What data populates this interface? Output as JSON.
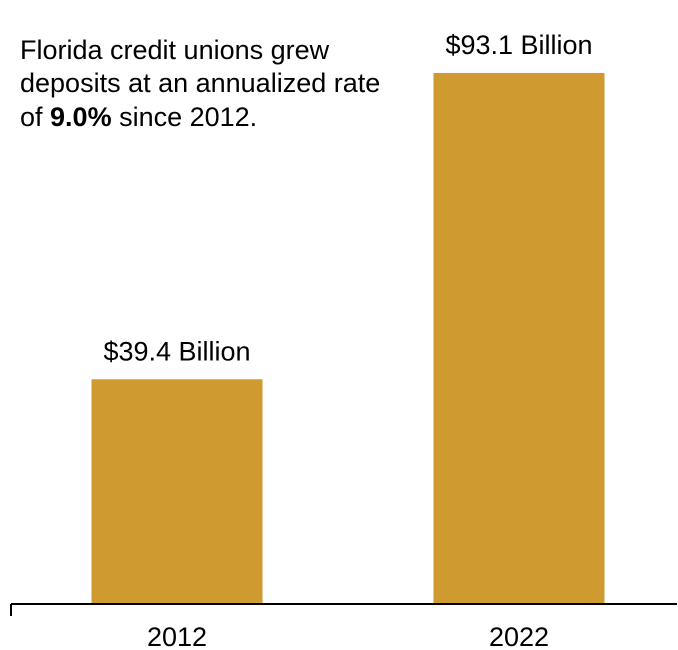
{
  "chart_data": {
    "type": "bar",
    "categories": [
      "2012",
      "2022"
    ],
    "values": [
      39.4,
      93.1
    ],
    "data_labels": [
      "$39.4 Billion",
      "$93.1 Billion"
    ],
    "ylim": [
      0,
      100
    ],
    "grid": false,
    "colors": {
      "bar": "#CF9A2F",
      "axis": "#000000",
      "text": "#000000"
    }
  },
  "annotation": {
    "before": "Florida credit unions grew deposits at an annualized rate of ",
    "emphasis": "9.0%",
    "after": " since 2012."
  }
}
